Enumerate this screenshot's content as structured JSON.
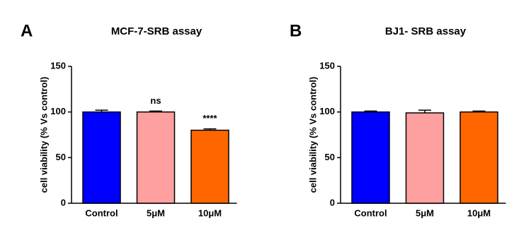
{
  "chart_data": [
    {
      "type": "bar",
      "panel_label": "A",
      "title": "MCF-7-SRB assay",
      "y_label": "cell viability (% Vs control)",
      "categories": [
        "Control",
        "5μM",
        "10μM"
      ],
      "values": [
        100,
        100,
        80
      ],
      "errors": [
        2,
        1,
        1.5
      ],
      "colors": [
        "#0000ff",
        "#ffa0a0",
        "#ff6600"
      ],
      "annotations": [
        null,
        "ns",
        "****"
      ],
      "ylim": [
        0,
        150
      ],
      "yticks": [
        0,
        50,
        100,
        150
      ]
    },
    {
      "type": "bar",
      "panel_label": "B",
      "title": "BJ1- SRB assay",
      "y_label": "cell viability (% Vs control)",
      "categories": [
        "Control",
        "5μM",
        "10μM"
      ],
      "values": [
        100,
        99,
        100
      ],
      "errors": [
        1,
        3,
        1
      ],
      "colors": [
        "#0000ff",
        "#ffa0a0",
        "#ff6600"
      ],
      "ylim": [
        0,
        150
      ],
      "yticks": [
        0,
        50,
        100,
        150
      ]
    }
  ]
}
